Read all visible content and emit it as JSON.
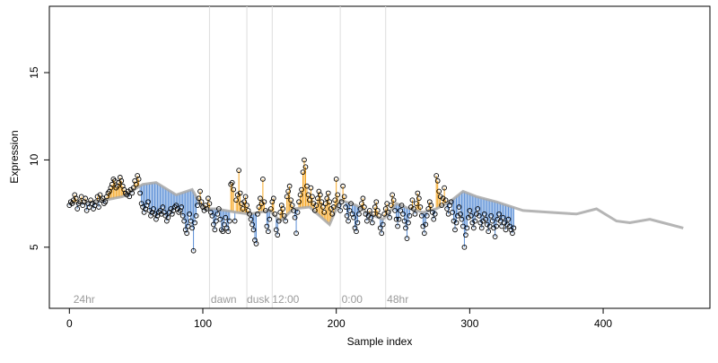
{
  "chart_data": {
    "type": "scatter",
    "title": "",
    "xlabel": "Sample index",
    "ylabel": "Expression",
    "xlim": [
      -15,
      480
    ],
    "ylim": [
      1.5,
      18.8
    ],
    "xticks": [
      0,
      100,
      200,
      300,
      400
    ],
    "yticks": [
      5,
      10,
      15
    ],
    "grid": false,
    "legend": "none",
    "annotations": [
      {
        "text": "24hr",
        "x": 3
      },
      {
        "text": "dawn",
        "x": 106
      },
      {
        "text": "dusk",
        "x": 133
      },
      {
        "text": "12:00",
        "x": 152
      },
      {
        "text": "0:00",
        "x": 204
      },
      {
        "text": "48hr",
        "x": 238
      }
    ],
    "separators_x": [
      105,
      133,
      152,
      203,
      237
    ],
    "fit_anchors": [
      [
        0,
        7.5
      ],
      [
        20,
        7.6
      ],
      [
        40,
        7.9
      ],
      [
        55,
        8.6
      ],
      [
        65,
        8.7
      ],
      [
        80,
        8.0
      ],
      [
        92,
        8.3
      ],
      [
        100,
        7.2
      ],
      [
        110,
        7.2
      ],
      [
        125,
        7.0
      ],
      [
        135,
        6.9
      ],
      [
        150,
        7.1
      ],
      [
        158,
        6.5
      ],
      [
        168,
        7.2
      ],
      [
        180,
        7.3
      ],
      [
        195,
        6.3
      ],
      [
        203,
        7.7
      ],
      [
        215,
        7.4
      ],
      [
        225,
        6.9
      ],
      [
        235,
        6.6
      ],
      [
        245,
        7.5
      ],
      [
        255,
        7.2
      ],
      [
        265,
        7.0
      ],
      [
        275,
        7.2
      ],
      [
        285,
        7.6
      ],
      [
        295,
        8.2
      ],
      [
        305,
        7.9
      ],
      [
        320,
        7.6
      ],
      [
        340,
        7.1
      ],
      [
        360,
        7.0
      ],
      [
        380,
        6.9
      ],
      [
        395,
        7.2
      ],
      [
        410,
        6.5
      ],
      [
        420,
        6.4
      ],
      [
        435,
        6.6
      ],
      [
        450,
        6.3
      ],
      [
        460,
        6.1
      ]
    ],
    "samples": [
      7.4,
      7.6,
      7.5,
      7.7,
      8.0,
      7.8,
      7.2,
      7.5,
      7.6,
      7.9,
      7.4,
      7.6,
      7.8,
      7.1,
      7.5,
      7.3,
      7.7,
      7.5,
      7.2,
      7.4,
      7.6,
      7.9,
      7.3,
      8.0,
      7.7,
      7.8,
      7.5,
      7.6,
      7.9,
      8.1,
      8.2,
      8.4,
      8.6,
      8.9,
      8.8,
      8.4,
      8.5,
      8.7,
      9.0,
      8.8,
      8.5,
      8.3,
      8.1,
      8.0,
      8.2,
      7.9,
      8.3,
      8.1,
      8.4,
      8.8,
      8.6,
      9.1,
      8.9,
      8.1,
      7.5,
      7.3,
      7.0,
      7.2,
      7.4,
      7.6,
      7.1,
      6.8,
      7.0,
      7.2,
      6.9,
      6.6,
      6.8,
      7.0,
      7.1,
      6.9,
      7.3,
      7.0,
      6.8,
      6.5,
      6.7,
      7.0,
      7.2,
      6.9,
      7.1,
      7.3,
      7.4,
      7.2,
      7.0,
      7.1,
      7.3,
      6.8,
      6.5,
      6.0,
      5.8,
      6.2,
      6.9,
      6.5,
      6.1,
      4.8,
      6.4,
      6.8,
      7.4,
      7.8,
      8.2,
      7.6,
      7.3,
      7.1,
      7.4,
      7.2,
      7.8,
      7.5,
      7.0,
      6.8,
      6.3,
      6.0,
      6.5,
      6.9,
      7.2,
      6.6,
      6.0,
      5.9,
      6.3,
      6.7,
      6.1,
      5.9,
      6.5,
      8.6,
      8.7,
      8.3,
      6.5,
      7.7,
      8.0,
      9.4,
      8.1,
      7.5,
      7.2,
      7.6,
      7.9,
      7.4,
      7.1,
      6.9,
      6.6,
      6.3,
      6.0,
      5.4,
      5.2,
      6.9,
      7.3,
      7.8,
      7.5,
      8.9,
      7.6,
      7.1,
      6.2,
      5.9,
      6.6,
      7.2,
      7.6,
      7.8,
      6.9,
      6.0,
      5.7,
      6.5,
      7.0,
      7.4,
      7.2,
      6.8,
      6.5,
      7.9,
      8.2,
      8.5,
      7.7,
      7.4,
      7.1,
      6.7,
      5.8,
      7.0,
      7.6,
      8.0,
      8.3,
      9.3,
      10.0,
      9.6,
      8.5,
      8.0,
      7.7,
      8.4,
      7.9,
      7.5,
      7.1,
      7.4,
      7.8,
      8.2,
      8.0,
      7.6,
      7.3,
      7.0,
      7.5,
      7.8,
      8.1,
      7.6,
      7.2,
      6.9,
      7.3,
      7.7,
      8.9,
      8.0,
      7.4,
      7.1,
      7.6,
      8.5,
      7.9,
      7.3,
      6.8,
      6.5,
      7.1,
      7.5,
      6.9,
      6.7,
      6.1,
      5.9,
      6.4,
      6.9,
      7.2,
      7.5,
      7.8,
      7.3,
      6.9,
      6.5,
      6.8,
      7.1,
      6.7,
      6.4,
      6.9,
      7.3,
      7.6,
      7.1,
      6.8,
      6.1,
      5.8,
      6.3,
      6.9,
      7.2,
      7.5,
      7.0,
      6.7,
      7.4,
      8.0,
      7.7,
      7.1,
      6.6,
      6.2,
      6.6,
      7.1,
      7.4,
      6.9,
      6.5,
      6.1,
      5.5,
      6.4,
      6.8,
      7.3,
      7.7,
      7.2,
      6.9,
      7.5,
      8.1,
      7.8,
      7.3,
      6.8,
      6.2,
      5.8,
      6.3,
      6.8,
      7.2,
      7.6,
      7.4,
      7.0,
      6.6,
      6.9,
      9.1,
      8.8,
      8.2,
      7.9,
      7.4,
      7.8,
      8.4,
      7.7,
      7.2,
      6.9,
      7.4,
      7.6,
      7.0,
      6.5,
      6.0,
      6.4,
      6.8,
      7.3,
      6.9,
      6.6,
      6.2,
      5.0,
      5.7,
      6.1,
      6.7,
      7.1,
      6.8,
      6.4,
      6.1,
      6.5,
      6.9,
      7.2,
      6.8,
      6.4,
      6.1,
      6.5,
      6.9,
      6.6,
      6.3,
      5.9,
      6.2,
      6.8,
      6.5,
      6.1,
      5.6,
      6.2,
      6.6,
      6.9,
      6.5,
      6.2,
      6.7,
      6.4,
      6.0,
      6.3,
      6.6,
      6.2,
      6.0,
      5.8,
      6.1
    ]
  }
}
